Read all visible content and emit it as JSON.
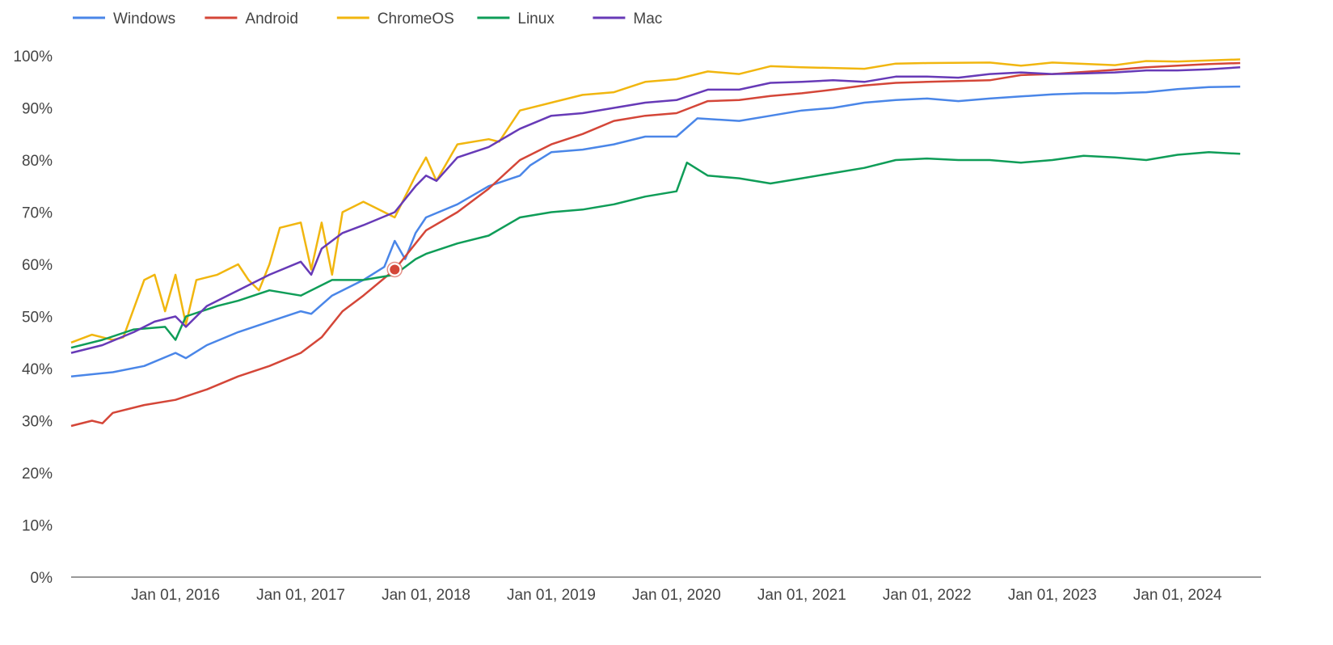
{
  "chart_data": {
    "type": "line",
    "title": "",
    "xlabel": "",
    "ylabel": "",
    "xlim": [
      "2015-03",
      "2024-09"
    ],
    "ylim": [
      0,
      100
    ],
    "grid": false,
    "legend": "top-left",
    "y_ticks": [
      "0%",
      "10%",
      "20%",
      "30%",
      "40%",
      "50%",
      "60%",
      "70%",
      "80%",
      "90%",
      "100%"
    ],
    "x_ticks": [
      {
        "date": "2016-01",
        "label": "Jan 01, 2016"
      },
      {
        "date": "2017-01",
        "label": "Jan 01, 2017"
      },
      {
        "date": "2018-01",
        "label": "Jan 01, 2018"
      },
      {
        "date": "2019-01",
        "label": "Jan 01, 2019"
      },
      {
        "date": "2020-01",
        "label": "Jan 01, 2020"
      },
      {
        "date": "2021-01",
        "label": "Jan 01, 2021"
      },
      {
        "date": "2022-01",
        "label": "Jan 01, 2022"
      },
      {
        "date": "2023-01",
        "label": "Jan 01, 2023"
      },
      {
        "date": "2024-01",
        "label": "Jan 01, 2024"
      }
    ],
    "highlight": {
      "series": "Android",
      "date": "2017-10",
      "value": 59
    },
    "series": [
      {
        "name": "Windows",
        "color": "#4a86e8",
        "points": [
          [
            "2015-03",
            38.5
          ],
          [
            "2015-07",
            39.3
          ],
          [
            "2015-10",
            40.5
          ],
          [
            "2016-01",
            43
          ],
          [
            "2016-02",
            42
          ],
          [
            "2016-04",
            44.5
          ],
          [
            "2016-07",
            47
          ],
          [
            "2016-10",
            49
          ],
          [
            "2017-01",
            51
          ],
          [
            "2017-02",
            50.5
          ],
          [
            "2017-04",
            54
          ],
          [
            "2017-07",
            57
          ],
          [
            "2017-09",
            59.5
          ],
          [
            "2017-10",
            64.5
          ],
          [
            "2017-11",
            61
          ],
          [
            "2017-12",
            66
          ],
          [
            "2018-01",
            69
          ],
          [
            "2018-04",
            71.5
          ],
          [
            "2018-07",
            75
          ],
          [
            "2018-10",
            77
          ],
          [
            "2018-11",
            79
          ],
          [
            "2019-01",
            81.5
          ],
          [
            "2019-04",
            82
          ],
          [
            "2019-07",
            83
          ],
          [
            "2019-10",
            84.5
          ],
          [
            "2020-01",
            84.5
          ],
          [
            "2020-03",
            88
          ],
          [
            "2020-07",
            87.5
          ],
          [
            "2020-10",
            88.5
          ],
          [
            "2021-01",
            89.5
          ],
          [
            "2021-04",
            90
          ],
          [
            "2021-07",
            91
          ],
          [
            "2021-10",
            91.5
          ],
          [
            "2022-01",
            91.8
          ],
          [
            "2022-04",
            91.3
          ],
          [
            "2022-07",
            91.8
          ],
          [
            "2022-10",
            92.2
          ],
          [
            "2023-01",
            92.6
          ],
          [
            "2023-04",
            92.8
          ],
          [
            "2023-07",
            92.8
          ],
          [
            "2023-10",
            93
          ],
          [
            "2024-01",
            93.6
          ],
          [
            "2024-04",
            94
          ],
          [
            "2024-07",
            94.1
          ]
        ]
      },
      {
        "name": "Android",
        "color": "#d44638",
        "points": [
          [
            "2015-03",
            29
          ],
          [
            "2015-05",
            30
          ],
          [
            "2015-06",
            29.5
          ],
          [
            "2015-07",
            31.5
          ],
          [
            "2015-10",
            33
          ],
          [
            "2016-01",
            34
          ],
          [
            "2016-04",
            36
          ],
          [
            "2016-07",
            38.5
          ],
          [
            "2016-10",
            40.5
          ],
          [
            "2017-01",
            43
          ],
          [
            "2017-03",
            46
          ],
          [
            "2017-05",
            51
          ],
          [
            "2017-07",
            54
          ],
          [
            "2017-10",
            59
          ],
          [
            "2017-12",
            64
          ],
          [
            "2018-01",
            66.5
          ],
          [
            "2018-04",
            70
          ],
          [
            "2018-07",
            74.5
          ],
          [
            "2018-10",
            80
          ],
          [
            "2019-01",
            83
          ],
          [
            "2019-04",
            85
          ],
          [
            "2019-07",
            87.5
          ],
          [
            "2019-10",
            88.5
          ],
          [
            "2020-01",
            89
          ],
          [
            "2020-04",
            91.3
          ],
          [
            "2020-07",
            91.5
          ],
          [
            "2020-10",
            92.3
          ],
          [
            "2021-01",
            92.8
          ],
          [
            "2021-04",
            93.5
          ],
          [
            "2021-07",
            94.3
          ],
          [
            "2021-10",
            94.8
          ],
          [
            "2022-01",
            95
          ],
          [
            "2022-07",
            95.3
          ],
          [
            "2022-10",
            96.3
          ],
          [
            "2023-01",
            96.5
          ],
          [
            "2023-04",
            96.9
          ],
          [
            "2023-07",
            97.3
          ],
          [
            "2023-10",
            97.8
          ],
          [
            "2024-01",
            98.1
          ],
          [
            "2024-04",
            98.4
          ],
          [
            "2024-07",
            98.6
          ]
        ]
      },
      {
        "name": "ChromeOS",
        "color": "#f1b60f",
        "points": [
          [
            "2015-03",
            45
          ],
          [
            "2015-05",
            46.5
          ],
          [
            "2015-07",
            45.5
          ],
          [
            "2015-08",
            46
          ],
          [
            "2015-10",
            57
          ],
          [
            "2015-11",
            58
          ],
          [
            "2015-12",
            51
          ],
          [
            "2016-01",
            58
          ],
          [
            "2016-02",
            48.5
          ],
          [
            "2016-03",
            57
          ],
          [
            "2016-05",
            58
          ],
          [
            "2016-07",
            60
          ],
          [
            "2016-08",
            57
          ],
          [
            "2016-09",
            55
          ],
          [
            "2016-10",
            60
          ],
          [
            "2016-11",
            67
          ],
          [
            "2017-01",
            68
          ],
          [
            "2017-02",
            59
          ],
          [
            "2017-03",
            68
          ],
          [
            "2017-04",
            58
          ],
          [
            "2017-05",
            70
          ],
          [
            "2017-07",
            72
          ],
          [
            "2017-09",
            70
          ],
          [
            "2017-10",
            69
          ],
          [
            "2017-12",
            77
          ],
          [
            "2018-01",
            80.5
          ],
          [
            "2018-02",
            76
          ],
          [
            "2018-04",
            83
          ],
          [
            "2018-07",
            84
          ],
          [
            "2018-08",
            83.5
          ],
          [
            "2018-10",
            89.5
          ],
          [
            "2019-01",
            91
          ],
          [
            "2019-04",
            92.5
          ],
          [
            "2019-07",
            93
          ],
          [
            "2019-10",
            95
          ],
          [
            "2020-01",
            95.5
          ],
          [
            "2020-04",
            97
          ],
          [
            "2020-07",
            96.5
          ],
          [
            "2020-10",
            98
          ],
          [
            "2021-01",
            97.8
          ],
          [
            "2021-07",
            97.5
          ],
          [
            "2021-10",
            98.5
          ],
          [
            "2022-01",
            98.6
          ],
          [
            "2022-07",
            98.7
          ],
          [
            "2022-10",
            98.1
          ],
          [
            "2023-01",
            98.7
          ],
          [
            "2023-07",
            98.2
          ],
          [
            "2023-10",
            99
          ],
          [
            "2024-01",
            98.9
          ],
          [
            "2024-07",
            99.3
          ]
        ]
      },
      {
        "name": "Linux",
        "color": "#0f9d58",
        "points": [
          [
            "2015-03",
            44
          ],
          [
            "2015-06",
            45.5
          ],
          [
            "2015-09",
            47.5
          ],
          [
            "2015-12",
            48
          ],
          [
            "2016-01",
            45.5
          ],
          [
            "2016-02",
            50
          ],
          [
            "2016-05",
            52
          ],
          [
            "2016-07",
            53
          ],
          [
            "2016-10",
            55
          ],
          [
            "2017-01",
            54
          ],
          [
            "2017-04",
            57
          ],
          [
            "2017-07",
            57
          ],
          [
            "2017-10",
            58
          ],
          [
            "2017-12",
            61
          ],
          [
            "2018-01",
            62
          ],
          [
            "2018-04",
            64
          ],
          [
            "2018-07",
            65.5
          ],
          [
            "2018-10",
            69
          ],
          [
            "2019-01",
            70
          ],
          [
            "2019-04",
            70.5
          ],
          [
            "2019-07",
            71.5
          ],
          [
            "2019-10",
            73
          ],
          [
            "2020-01",
            74
          ],
          [
            "2020-02",
            79.5
          ],
          [
            "2020-04",
            77
          ],
          [
            "2020-07",
            76.5
          ],
          [
            "2020-10",
            75.5
          ],
          [
            "2021-01",
            76.5
          ],
          [
            "2021-04",
            77.5
          ],
          [
            "2021-07",
            78.5
          ],
          [
            "2021-10",
            80
          ],
          [
            "2022-01",
            80.3
          ],
          [
            "2022-04",
            80
          ],
          [
            "2022-07",
            80
          ],
          [
            "2022-10",
            79.5
          ],
          [
            "2023-01",
            80
          ],
          [
            "2023-04",
            80.8
          ],
          [
            "2023-07",
            80.5
          ],
          [
            "2023-10",
            80
          ],
          [
            "2024-01",
            81
          ],
          [
            "2024-04",
            81.5
          ],
          [
            "2024-07",
            81.2
          ]
        ]
      },
      {
        "name": "Mac",
        "color": "#673ab7",
        "points": [
          [
            "2015-03",
            43
          ],
          [
            "2015-06",
            44.5
          ],
          [
            "2015-09",
            47
          ],
          [
            "2015-11",
            49
          ],
          [
            "2016-01",
            50
          ],
          [
            "2016-02",
            48
          ],
          [
            "2016-04",
            52
          ],
          [
            "2016-07",
            55
          ],
          [
            "2016-10",
            58
          ],
          [
            "2017-01",
            60.5
          ],
          [
            "2017-02",
            58
          ],
          [
            "2017-03",
            63
          ],
          [
            "2017-05",
            66
          ],
          [
            "2017-07",
            67.5
          ],
          [
            "2017-10",
            70
          ],
          [
            "2017-12",
            75
          ],
          [
            "2018-01",
            77
          ],
          [
            "2018-02",
            76
          ],
          [
            "2018-04",
            80.5
          ],
          [
            "2018-07",
            82.5
          ],
          [
            "2018-10",
            86
          ],
          [
            "2019-01",
            88.5
          ],
          [
            "2019-04",
            89
          ],
          [
            "2019-07",
            90
          ],
          [
            "2019-10",
            91
          ],
          [
            "2020-01",
            91.5
          ],
          [
            "2020-04",
            93.5
          ],
          [
            "2020-07",
            93.5
          ],
          [
            "2020-10",
            94.8
          ],
          [
            "2021-01",
            95
          ],
          [
            "2021-04",
            95.3
          ],
          [
            "2021-07",
            95
          ],
          [
            "2021-10",
            96
          ],
          [
            "2022-01",
            96
          ],
          [
            "2022-04",
            95.8
          ],
          [
            "2022-07",
            96.5
          ],
          [
            "2022-10",
            96.8
          ],
          [
            "2023-01",
            96.5
          ],
          [
            "2023-04",
            96.6
          ],
          [
            "2023-07",
            96.8
          ],
          [
            "2023-10",
            97.2
          ],
          [
            "2024-01",
            97.2
          ],
          [
            "2024-04",
            97.4
          ],
          [
            "2024-07",
            97.8
          ]
        ]
      }
    ]
  }
}
